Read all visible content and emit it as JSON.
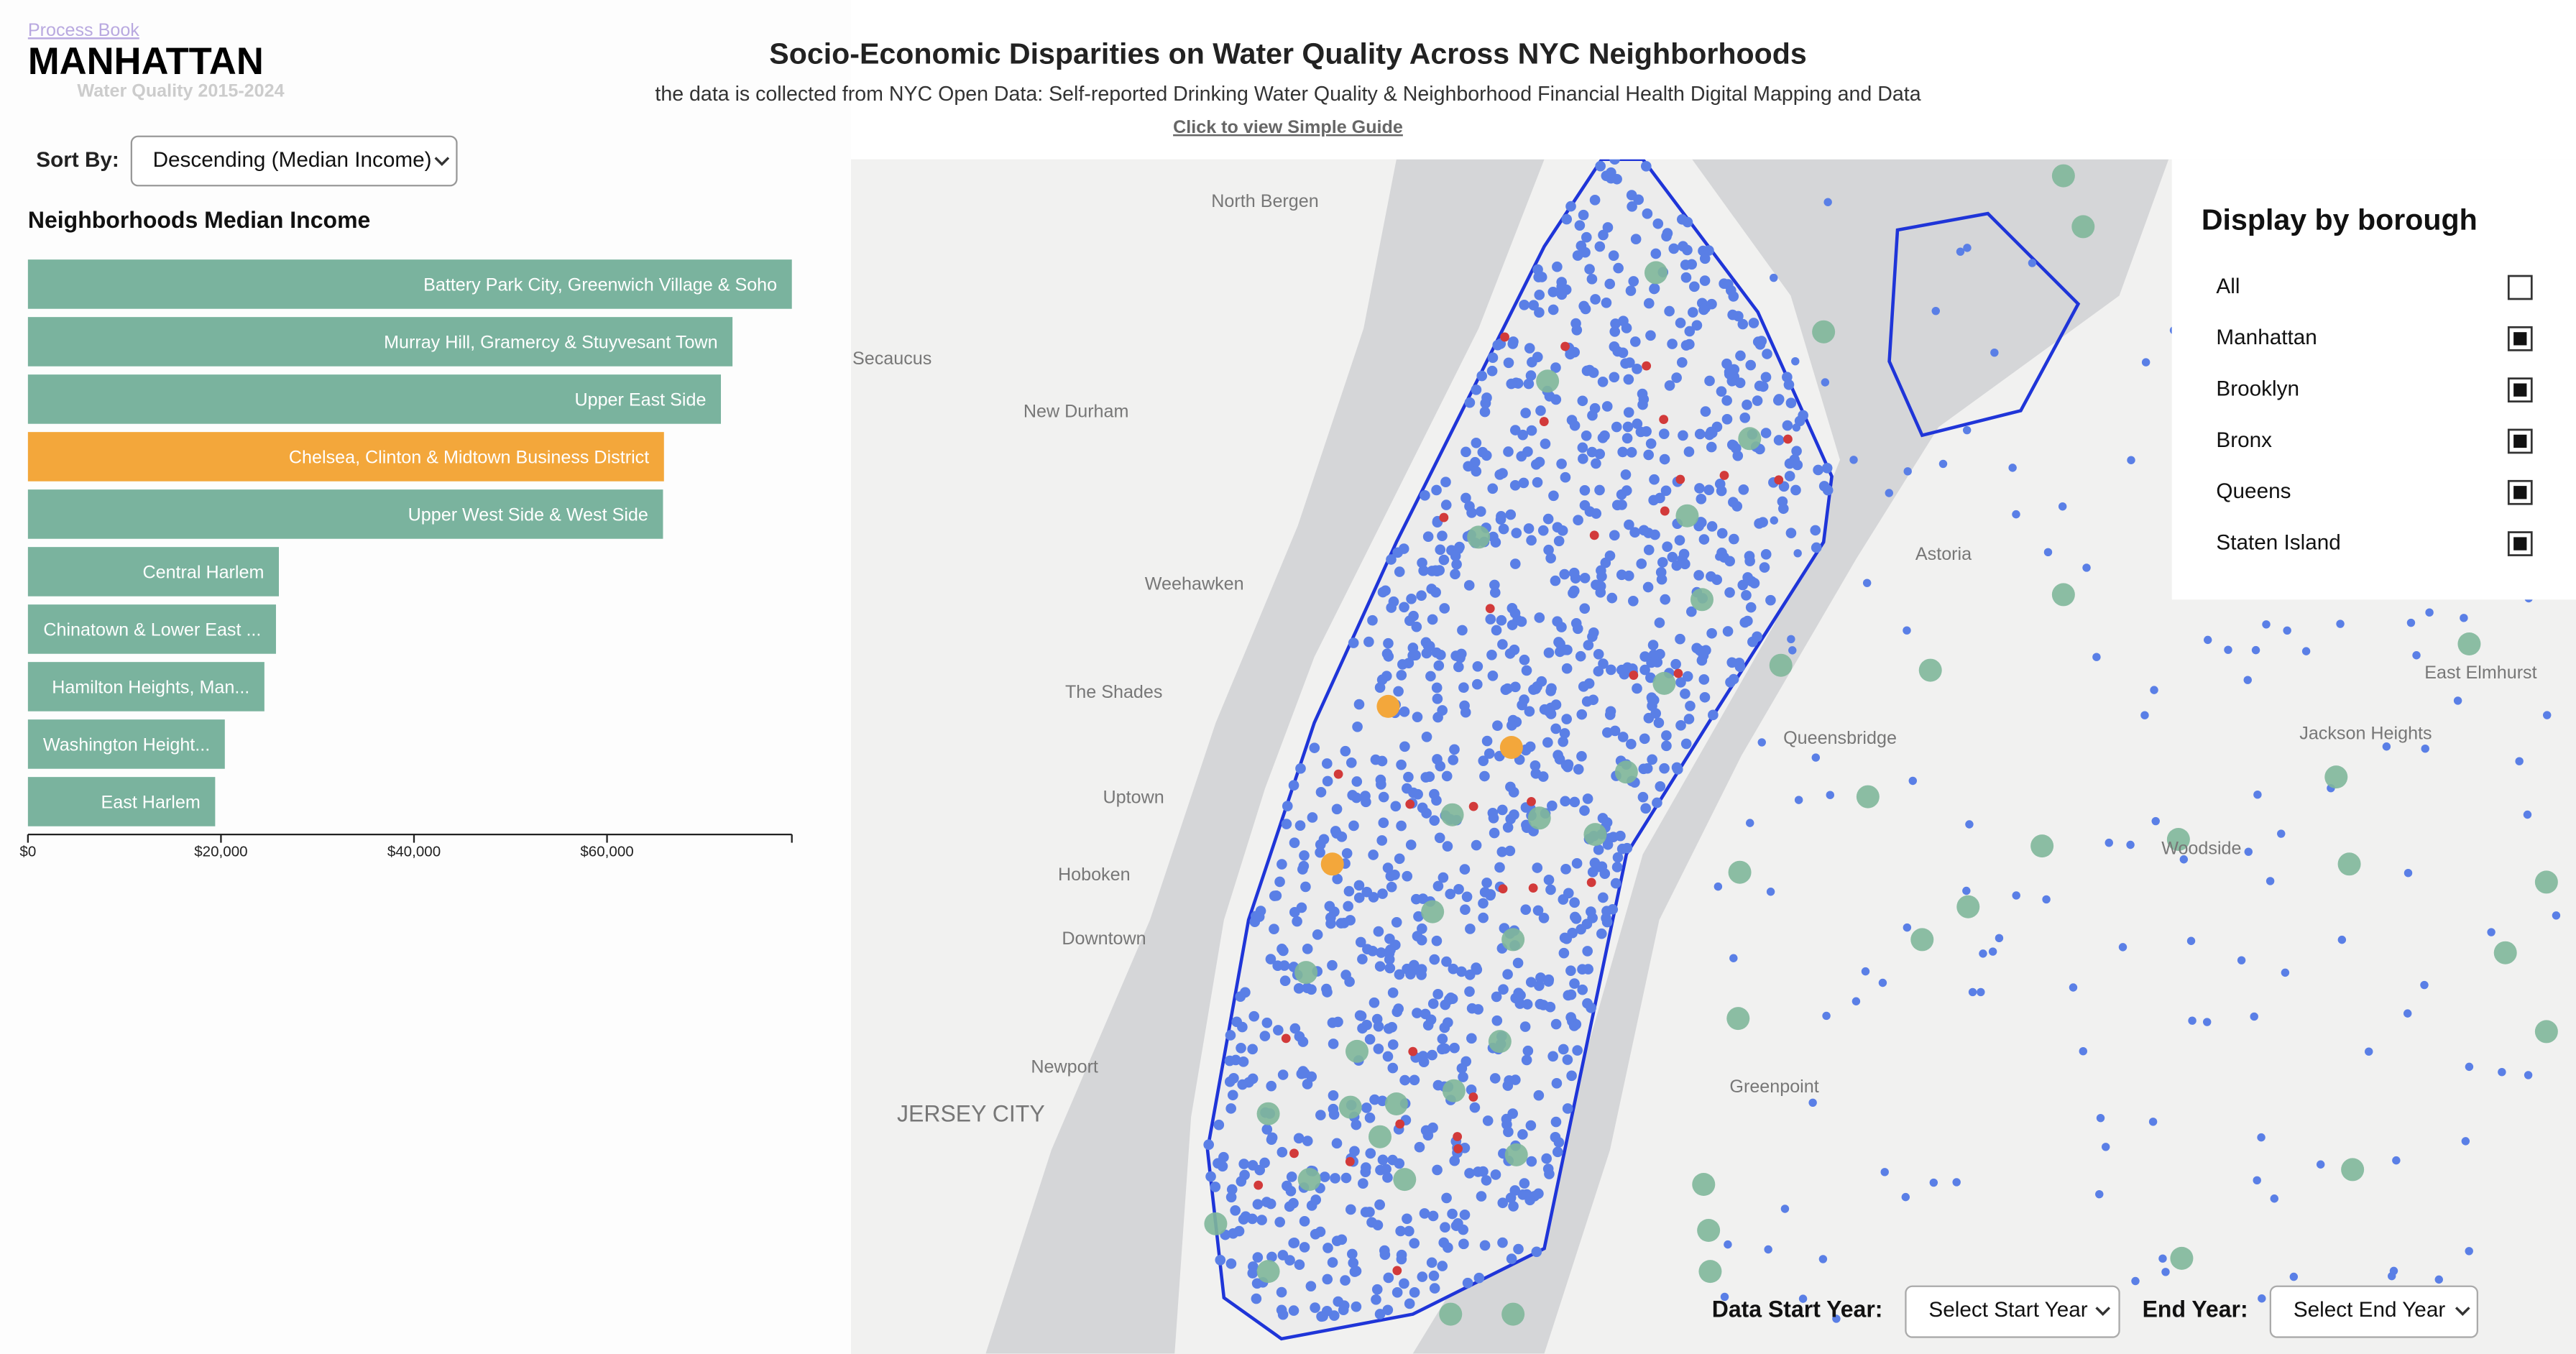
{
  "header": {
    "title": "Socio-Economic Disparities on Water Quality Across NYC Neighborhoods",
    "subtitle": "the data is collected from NYC Open Data: Self-reported Drinking Water Quality & Neighborhood Financial Health Digital Mapping and Data",
    "guide_link": "Click to view Simple Guide"
  },
  "nav": {
    "process_book": "Process Book"
  },
  "legend": {
    "title": "Water Quality 2015-2024"
  },
  "borough_title": "MANHATTAN",
  "sort": {
    "label": "Sort By:",
    "selected": "Descending (Median Income)"
  },
  "chart_data": {
    "type": "bar",
    "orientation": "horizontal",
    "title": "Neighborhoods Median Income",
    "categories": [
      "Battery Park City, Greenwich Village & Soho",
      "Murray Hill, Gramercy & Stuyvesant Town",
      "Upper East Side",
      "Chelsea, Clinton & Midtown Business District",
      "Upper West Side & West Side",
      "Central Harlem",
      "Chinatown & Lower East ...",
      "Hamilton Heights, Man...",
      "Washington Height...",
      "East Harlem"
    ],
    "values": [
      79150,
      73000,
      71800,
      65900,
      65800,
      26000,
      25700,
      24500,
      20400,
      19400
    ],
    "colors": [
      "#7ab39e",
      "#7ab39e",
      "#7ab39e",
      "#f3a73b",
      "#7ab39e",
      "#7ab39e",
      "#7ab39e",
      "#7ab39e",
      "#7ab39e",
      "#7ab39e"
    ],
    "xlim": [
      0,
      79150
    ],
    "xticks": [
      {
        "value": 0,
        "label": "$0"
      },
      {
        "value": 20000,
        "label": "$20,000"
      },
      {
        "value": 40000,
        "label": "$40,000"
      },
      {
        "value": 60000,
        "label": "$60,000"
      }
    ]
  },
  "borough_panel": {
    "title": "Display by borough",
    "options": [
      {
        "label": "All",
        "checked": false
      },
      {
        "label": "Manhattan",
        "checked": true
      },
      {
        "label": "Brooklyn",
        "checked": true
      },
      {
        "label": "Bronx",
        "checked": true
      },
      {
        "label": "Queens",
        "checked": true
      },
      {
        "label": "Staten Island",
        "checked": true
      }
    ]
  },
  "year_filter": {
    "start_label": "Data Start Year:",
    "start_placeholder": "Select Start Year",
    "end_label": "End Year:",
    "end_placeholder": "Select End Year"
  },
  "map": {
    "labels": [
      "North Bergen",
      "Secaucus",
      "New Durham",
      "Weehawken",
      "The Shades",
      "Uptown",
      "Hoboken",
      "Downtown",
      "Newport",
      "JERSEY CITY",
      "Astoria",
      "Queensbridge",
      "Jackson Heights",
      "Woodside",
      "Greenpoint",
      "East Elmhurst"
    ]
  }
}
